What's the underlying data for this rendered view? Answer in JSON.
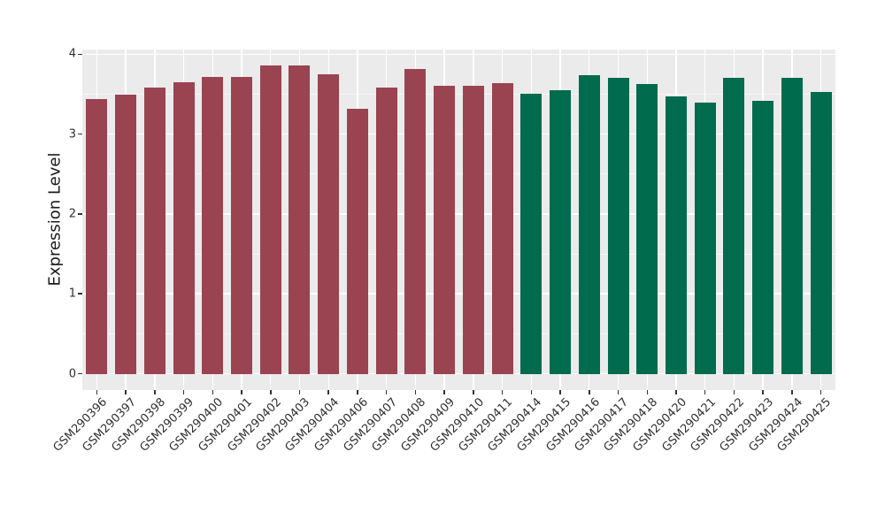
{
  "chart_data": {
    "type": "bar",
    "title": "",
    "xlabel": "",
    "ylabel": "Expression Level",
    "ylim": [
      0,
      4.06
    ],
    "yticks": [
      0,
      1,
      2,
      3,
      4
    ],
    "yticks_minor": [
      0.5,
      1.5,
      2.5,
      3.5
    ],
    "grid": "white major and minor horizontal lines plus white vertical lines at category centers on grey panel (ggplot style)",
    "legend_position": "none",
    "categories": [
      "GSM290396",
      "GSM290397",
      "GSM290398",
      "GSM290399",
      "GSM290400",
      "GSM290401",
      "GSM290402",
      "GSM290403",
      "GSM290404",
      "GSM290406",
      "GSM290407",
      "GSM290408",
      "GSM290409",
      "GSM290410",
      "GSM290411",
      "GSM290414",
      "GSM290415",
      "GSM290416",
      "GSM290417",
      "GSM290418",
      "GSM290420",
      "GSM290421",
      "GSM290422",
      "GSM290423",
      "GSM290424",
      "GSM290425"
    ],
    "series": [
      {
        "name": "maroon-bars",
        "color": "#9A4351",
        "categories": [
          "GSM290396",
          "GSM290397",
          "GSM290398",
          "GSM290399",
          "GSM290400",
          "GSM290401",
          "GSM290402",
          "GSM290403",
          "GSM290404",
          "GSM290406",
          "GSM290407",
          "GSM290408",
          "GSM290409",
          "GSM290410",
          "GSM290411"
        ],
        "values": [
          3.44,
          3.49,
          3.58,
          3.65,
          3.72,
          3.72,
          3.86,
          3.86,
          3.75,
          3.32,
          3.58,
          3.82,
          3.61,
          3.6,
          3.64
        ]
      },
      {
        "name": "green-bars",
        "color": "#016B4E",
        "categories": [
          "GSM290414",
          "GSM290415",
          "GSM290416",
          "GSM290417",
          "GSM290418",
          "GSM290420",
          "GSM290421",
          "GSM290422",
          "GSM290423",
          "GSM290424",
          "GSM290425"
        ],
        "values": [
          3.5,
          3.55,
          3.74,
          3.71,
          3.63,
          3.47,
          3.39,
          3.7,
          3.42,
          3.71,
          3.53
        ]
      }
    ]
  },
  "colors": {
    "page_bg": "#FFFFFF",
    "panel_bg": "#EBEBEB",
    "grid": "#FFFFFF",
    "axis_text": "#303030",
    "axis_title": "#1A1A1A",
    "tick_mark": "#333333"
  },
  "ytick_labels": [
    "0",
    "1",
    "2",
    "3",
    "4"
  ]
}
